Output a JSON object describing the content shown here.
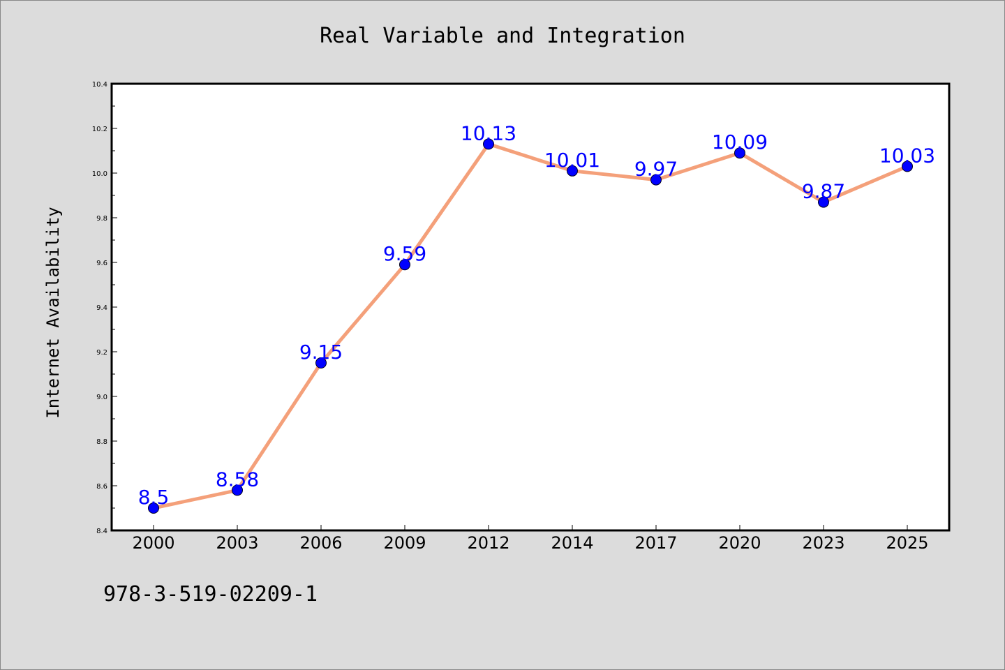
{
  "chart_data": {
    "type": "line",
    "title": "Real Variable and Integration",
    "xlabel": "",
    "ylabel": "Internet Availability",
    "categories": [
      "2000",
      "2003",
      "2006",
      "2009",
      "2012",
      "2014",
      "2017",
      "2020",
      "2023",
      "2025"
    ],
    "series": [
      {
        "values": [
          8.5,
          8.58,
          9.15,
          9.59,
          10.13,
          10.01,
          9.97,
          10.09,
          9.87,
          10.03
        ],
        "data_labels": [
          "8.5",
          "8.58",
          "9.15",
          "9.59",
          "10.13",
          "10.01",
          "9.97",
          "10.09",
          "9.87",
          "10.03"
        ]
      }
    ],
    "ylim": [
      8.4,
      10.4
    ],
    "yticks": [
      "8.4",
      "8.6",
      "8.8",
      "9.0",
      "9.2",
      "9.4",
      "9.6",
      "9.8",
      "10.0",
      "10.2",
      "10.4"
    ],
    "grid": false,
    "colors": {
      "line": "#f4a07a",
      "marker": "#0000ff",
      "data_label": "#0000ff",
      "plot_bg": "#ffffff",
      "page_bg": "#dcdcdc"
    }
  },
  "footer": {
    "isbn": "978-3-519-02209-1"
  }
}
